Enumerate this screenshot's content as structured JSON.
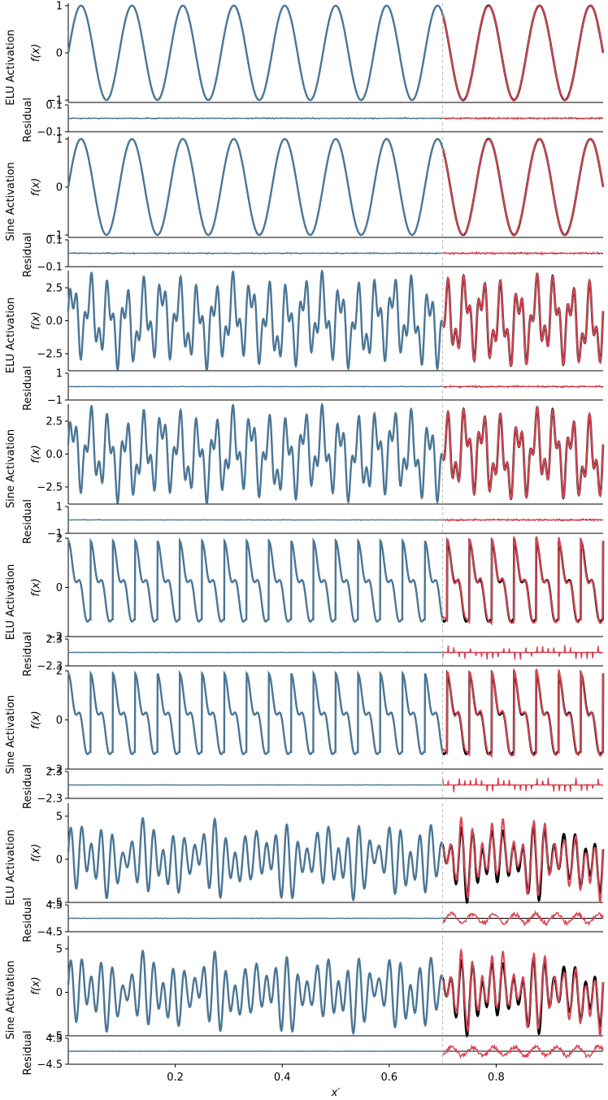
{
  "colors": {
    "train": "#4a7696",
    "test": "#d84452",
    "truth": "#000000",
    "split_line": "#bbbbbb"
  },
  "chart_data": {
    "type": "line",
    "xlabel": "x′",
    "xlim": [
      0.0,
      1.0
    ],
    "x_ticks": [
      "0.2",
      "0.4",
      "0.6",
      "0.8"
    ],
    "x_tick_values": [
      0.2,
      0.4,
      0.6,
      0.8
    ],
    "split_x": 0.7,
    "panels": [
      {
        "row_label": "ELU Activation",
        "ylabel": "f(x)",
        "ylim": [
          -1.05,
          1.05
        ],
        "yticks": [
          -1,
          0,
          1
        ],
        "ytick_labels": [
          "−1",
          "0",
          "1"
        ],
        "residual_ticks": [
          "0.1",
          "−0.1"
        ],
        "residual_range": 0.1,
        "signal": "sine",
        "amplitude": 1.0
      },
      {
        "row_label": "Sine Activation",
        "ylabel": "f(x)",
        "ylim": [
          -1.05,
          1.05
        ],
        "yticks": [
          -1,
          0,
          1
        ],
        "ytick_labels": [
          "−1",
          "0",
          "1"
        ],
        "residual_ticks": [
          "0.1",
          "−0.1"
        ],
        "residual_range": 0.1,
        "signal": "sine",
        "amplitude": 1.0
      },
      {
        "row_label": "ELU Activation",
        "ylabel": "f(x)",
        "ylim": [
          -3.8,
          3.8
        ],
        "yticks": [
          -2.5,
          0.0,
          2.5
        ],
        "ytick_labels": [
          "−2.5",
          "0.0",
          "2.5"
        ],
        "residual_ticks": [
          "1",
          "−1"
        ],
        "residual_range": 1,
        "signal": "multi",
        "amplitude": 3.5
      },
      {
        "row_label": "Sine Activation",
        "ylabel": "f(x)",
        "ylim": [
          -3.8,
          3.8
        ],
        "yticks": [
          -2.5,
          0.0,
          2.5
        ],
        "ytick_labels": [
          "−2.5",
          "0.0",
          "2.5"
        ],
        "residual_ticks": [
          "1",
          "−1"
        ],
        "residual_range": 1,
        "signal": "multi",
        "amplitude": 3.5
      },
      {
        "row_label": "ELU Activation",
        "ylabel": "f(x)",
        "ylim": [
          -2.0,
          2.0
        ],
        "yticks": [
          -2,
          0,
          2
        ],
        "ytick_labels": [
          "−2",
          "0",
          "2"
        ],
        "residual_ticks": [
          "2.3",
          "−2.3"
        ],
        "residual_range": 2.3,
        "signal": "sawtooth",
        "amplitude": 1.8
      },
      {
        "row_label": "Sine Activation",
        "ylabel": "f(x)",
        "ylim": [
          -2.0,
          2.0
        ],
        "yticks": [
          -2,
          0,
          2
        ],
        "ytick_labels": [
          "−2",
          "0",
          "2"
        ],
        "residual_ticks": [
          "2.3",
          "−2.3"
        ],
        "residual_range": 2.3,
        "signal": "sawtooth",
        "amplitude": 1.8
      },
      {
        "row_label": "ELU Activation",
        "ylabel": "f(x)",
        "ylim": [
          -5.0,
          6.5
        ],
        "yticks": [
          -5,
          0,
          5
        ],
        "ytick_labels": [
          "−5",
          "0",
          "5"
        ],
        "residual_ticks": [
          "4.5",
          "−4.5"
        ],
        "residual_range": 4.5,
        "signal": "modulated",
        "amplitude": 5.0
      },
      {
        "row_label": "Sine Activation",
        "ylabel": "f(x)",
        "ylim": [
          -5.0,
          6.5
        ],
        "yticks": [
          -5,
          0,
          5
        ],
        "ytick_labels": [
          "−5",
          "0",
          "5"
        ],
        "residual_ticks": [
          "4.5",
          "−4.5"
        ],
        "residual_range": 4.5,
        "signal": "modulated",
        "amplitude": 5.0
      }
    ]
  }
}
